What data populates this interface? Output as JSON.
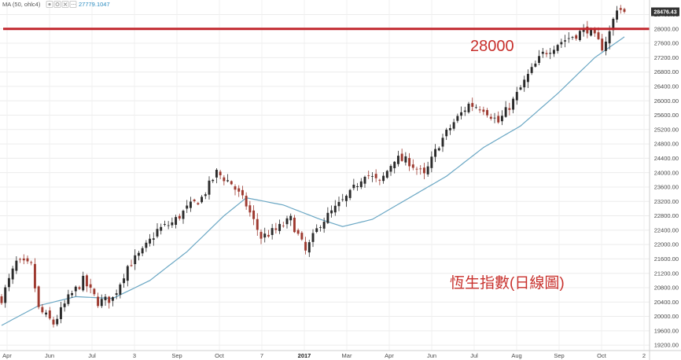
{
  "header": {
    "indicator": "MA (50, ohlc4)",
    "indicator_value": "27779.1047",
    "last_price": "28476.43",
    "controls": [
      "eye-icon",
      "gear-icon",
      "close-icon",
      "more-icon"
    ]
  },
  "annotations": {
    "level_label": "28000",
    "title": "恆生指數(日線圖)"
  },
  "colors": {
    "up": "#2b2b2b",
    "down": "#9e3a30",
    "ma": "#6aa7c4",
    "support": "#c1272d",
    "annotation": "#c8302c",
    "last_label_bg": "#333333"
  },
  "chart_data": {
    "type": "candlestick",
    "title": "",
    "xlabel": "",
    "ylabel": "",
    "y_ticks": [
      "28400.00",
      "28000.00",
      "27600.00",
      "27200.00",
      "26800.00",
      "26400.00",
      "26000.00",
      "25600.00",
      "25200.00",
      "24800.00",
      "24400.00",
      "24000.00",
      "23600.00",
      "23200.00",
      "22800.00",
      "22400.00",
      "22000.00",
      "21600.00",
      "21200.00",
      "20800.00",
      "20400.00",
      "20000.00",
      "19600.00",
      "19200.00"
    ],
    "ylim": [
      19050,
      28760
    ],
    "x_ticks": [
      "Apr",
      "Jun",
      "Jul",
      "3",
      "Sep",
      "Oct",
      "7",
      "2017",
      "Mar",
      "Apr",
      "Jun",
      "Jul",
      "Aug",
      "Sep",
      "Oct",
      "2"
    ],
    "x_ticks_bold": [
      "2017"
    ],
    "horizontal_line": 28000,
    "close_anchors": [
      [
        0,
        20500
      ],
      [
        4,
        21500
      ],
      [
        8,
        21400
      ],
      [
        10,
        20200
      ],
      [
        14,
        19800
      ],
      [
        18,
        20500
      ],
      [
        22,
        21000
      ],
      [
        26,
        20400
      ],
      [
        30,
        20500
      ],
      [
        34,
        21400
      ],
      [
        38,
        21800
      ],
      [
        42,
        22400
      ],
      [
        46,
        22600
      ],
      [
        50,
        23000
      ],
      [
        54,
        23300
      ],
      [
        58,
        24000
      ],
      [
        62,
        23700
      ],
      [
        66,
        23100
      ],
      [
        70,
        22200
      ],
      [
        74,
        22400
      ],
      [
        78,
        22700
      ],
      [
        82,
        21800
      ],
      [
        86,
        22600
      ],
      [
        90,
        23000
      ],
      [
        94,
        23400
      ],
      [
        98,
        24000
      ],
      [
        102,
        23700
      ],
      [
        106,
        24400
      ],
      [
        110,
        24300
      ],
      [
        114,
        23900
      ],
      [
        118,
        24800
      ],
      [
        122,
        25400
      ],
      [
        126,
        25900
      ],
      [
        130,
        25800
      ],
      [
        134,
        25400
      ],
      [
        138,
        26000
      ],
      [
        142,
        26700
      ],
      [
        146,
        27300
      ],
      [
        150,
        27600
      ],
      [
        154,
        27800
      ],
      [
        158,
        28000
      ],
      [
        162,
        27500
      ],
      [
        164,
        27900
      ],
      [
        166,
        28600
      ],
      [
        168,
        28476
      ]
    ],
    "ma_anchors": [
      [
        0,
        19750
      ],
      [
        10,
        20300
      ],
      [
        20,
        20550
      ],
      [
        30,
        20500
      ],
      [
        40,
        21000
      ],
      [
        50,
        21800
      ],
      [
        60,
        22800
      ],
      [
        66,
        23300
      ],
      [
        76,
        23100
      ],
      [
        86,
        22700
      ],
      [
        92,
        22500
      ],
      [
        100,
        22700
      ],
      [
        110,
        23300
      ],
      [
        120,
        23900
      ],
      [
        130,
        24700
      ],
      [
        140,
        25300
      ],
      [
        150,
        26200
      ],
      [
        160,
        27200
      ],
      [
        168,
        27779
      ]
    ],
    "series": [
      {
        "name": "MA (50, ohlc4)",
        "last_value": 27779.1047
      },
      {
        "name": "",
        "last_value": 28476.43
      }
    ]
  }
}
